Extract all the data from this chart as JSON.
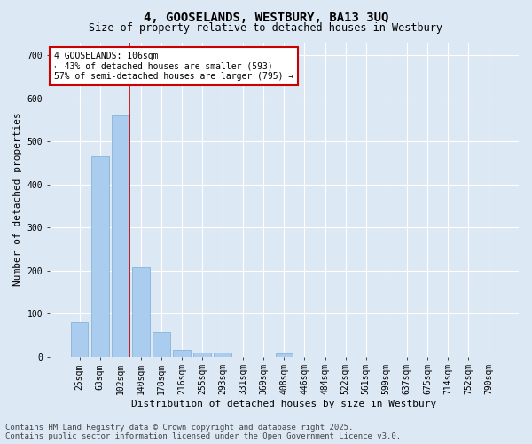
{
  "title": "4, GOOSELANDS, WESTBURY, BA13 3UQ",
  "subtitle": "Size of property relative to detached houses in Westbury",
  "xlabel": "Distribution of detached houses by size in Westbury",
  "ylabel": "Number of detached properties",
  "categories": [
    "25sqm",
    "63sqm",
    "102sqm",
    "140sqm",
    "178sqm",
    "216sqm",
    "255sqm",
    "293sqm",
    "331sqm",
    "369sqm",
    "408sqm",
    "446sqm",
    "484sqm",
    "522sqm",
    "561sqm",
    "599sqm",
    "637sqm",
    "675sqm",
    "714sqm",
    "752sqm",
    "790sqm"
  ],
  "values": [
    80,
    465,
    560,
    207,
    57,
    15,
    10,
    10,
    0,
    0,
    8,
    0,
    0,
    0,
    0,
    0,
    0,
    0,
    0,
    0,
    0
  ],
  "bar_color": "#aaccee",
  "bar_edge_color": "#7aadd4",
  "vline_color": "#cc0000",
  "annotation_text": "4 GOOSELANDS: 106sqm\n← 43% of detached houses are smaller (593)\n57% of semi-detached houses are larger (795) →",
  "annotation_box_color": "#ffffff",
  "annotation_box_edge": "#cc0000",
  "ylim": [
    0,
    730
  ],
  "yticks": [
    0,
    100,
    200,
    300,
    400,
    500,
    600,
    700
  ],
  "background_color": "#dde8f5",
  "grid_color": "#ffffff",
  "footer_line1": "Contains HM Land Registry data © Crown copyright and database right 2025.",
  "footer_line2": "Contains public sector information licensed under the Open Government Licence v3.0.",
  "title_fontsize": 10,
  "subtitle_fontsize": 8.5,
  "xlabel_fontsize": 8,
  "ylabel_fontsize": 8,
  "tick_fontsize": 7,
  "annotation_fontsize": 7,
  "footer_fontsize": 6.5
}
